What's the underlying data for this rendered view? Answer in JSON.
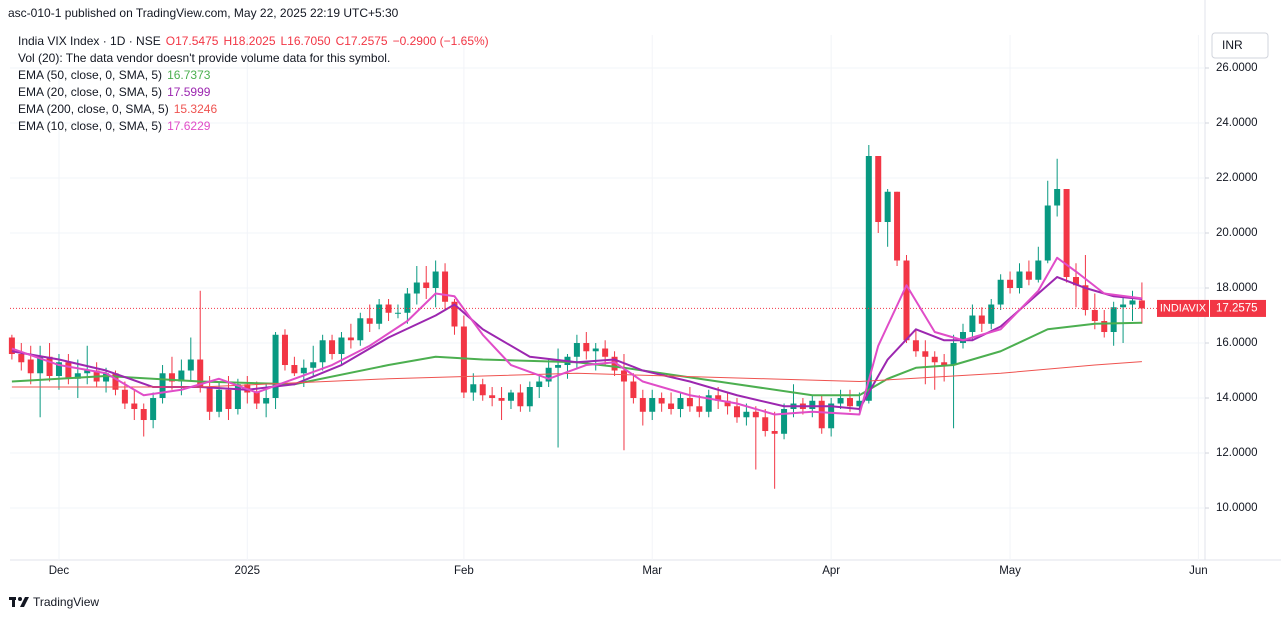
{
  "header": {
    "published": "asc-010-1 published on TradingView.com, May 22, 2025 22:19 UTC+5:30"
  },
  "footer": {
    "brand": "TradingView"
  },
  "chart_data": {
    "type": "candlestick",
    "title": "India VIX Index · 1D · NSE",
    "ohlc_text": [
      "O17.5475",
      "H18.2025",
      "L16.7050",
      "C17.2575",
      "−0.2900 (−1.65%)"
    ],
    "volume_note": "Vol (20): The data vendor doesn't provide volume data for this symbol.",
    "symbol_tag": "INDIAVIX",
    "currency": "INR",
    "up_color": "#089981",
    "down_color": "#f23645",
    "grid": true,
    "xlim": [
      -0.2,
      126.7
    ],
    "xticks": [
      {
        "value": 5,
        "label": "Dec"
      },
      {
        "value": 25,
        "label": "2025"
      },
      {
        "value": 48,
        "label": "Feb"
      },
      {
        "value": 68,
        "label": "Mar"
      },
      {
        "value": 87,
        "label": "Apr"
      },
      {
        "value": 106,
        "label": "May"
      },
      {
        "value": 126,
        "label": "Jun"
      }
    ],
    "ylim": [
      8.11,
      27.2
    ],
    "yticks": [
      {
        "value": 10,
        "label": "10.0000"
      },
      {
        "value": 12,
        "label": "12.0000"
      },
      {
        "value": 14,
        "label": "14.0000"
      },
      {
        "value": 16,
        "label": "16.0000"
      },
      {
        "value": 18,
        "label": "18.0000"
      },
      {
        "value": 20,
        "label": "20.0000"
      },
      {
        "value": 22,
        "label": "22.0000"
      },
      {
        "value": 24,
        "label": "24.0000"
      },
      {
        "value": 26,
        "label": "26.0000"
      }
    ],
    "ohlc": [
      [
        16.2,
        16.3,
        15.4,
        15.6
      ],
      [
        15.6,
        16.0,
        15.0,
        15.3
      ],
      [
        15.4,
        15.9,
        14.5,
        14.9
      ],
      [
        14.9,
        15.9,
        13.3,
        15.5
      ],
      [
        15.5,
        16.0,
        14.6,
        14.8
      ],
      [
        14.8,
        15.6,
        14.3,
        15.3
      ],
      [
        15.3,
        15.6,
        14.5,
        14.7
      ],
      [
        14.7,
        15.4,
        14.0,
        14.9
      ],
      [
        14.9,
        15.9,
        14.5,
        15.0
      ],
      [
        15.0,
        15.3,
        14.4,
        14.6
      ],
      [
        14.6,
        15.1,
        14.2,
        14.9
      ],
      [
        14.9,
        15.0,
        14.1,
        14.3
      ],
      [
        14.3,
        14.6,
        13.6,
        13.8
      ],
      [
        13.8,
        14.3,
        13.2,
        13.6
      ],
      [
        13.6,
        13.8,
        12.6,
        13.2
      ],
      [
        13.2,
        14.2,
        12.9,
        14.0
      ],
      [
        14.0,
        15.2,
        13.8,
        14.9
      ],
      [
        14.9,
        15.5,
        14.3,
        14.6
      ],
      [
        14.6,
        15.4,
        14.1,
        15.0
      ],
      [
        15.0,
        16.2,
        14.6,
        15.4
      ],
      [
        15.4,
        17.9,
        14.2,
        14.4
      ],
      [
        14.4,
        14.8,
        13.2,
        13.5
      ],
      [
        13.5,
        14.6,
        13.3,
        14.3
      ],
      [
        14.3,
        14.8,
        13.2,
        13.6
      ],
      [
        13.6,
        14.7,
        13.4,
        14.5
      ],
      [
        14.5,
        14.8,
        13.8,
        14.2
      ],
      [
        14.2,
        14.6,
        13.6,
        13.8
      ],
      [
        13.8,
        14.5,
        13.3,
        14.0
      ],
      [
        14.0,
        16.4,
        13.6,
        16.3
      ],
      [
        16.3,
        16.5,
        15.0,
        15.2
      ],
      [
        15.2,
        15.5,
        14.8,
        14.9
      ],
      [
        14.9,
        15.4,
        14.4,
        15.1
      ],
      [
        15.1,
        15.9,
        14.8,
        15.3
      ],
      [
        15.3,
        16.3,
        15.0,
        16.1
      ],
      [
        16.1,
        16.3,
        15.4,
        15.6
      ],
      [
        15.6,
        16.4,
        15.2,
        16.2
      ],
      [
        16.2,
        16.7,
        15.8,
        16.1
      ],
      [
        16.1,
        17.1,
        15.9,
        16.9
      ],
      [
        16.9,
        17.4,
        16.4,
        16.7
      ],
      [
        16.7,
        17.6,
        16.5,
        17.4
      ],
      [
        17.4,
        17.6,
        16.8,
        17.1
      ],
      [
        17.1,
        17.4,
        16.9,
        17.1
      ],
      [
        17.1,
        18.0,
        16.7,
        17.8
      ],
      [
        17.8,
        18.8,
        17.4,
        18.2
      ],
      [
        18.2,
        18.8,
        17.6,
        18.0
      ],
      [
        18.0,
        19.0,
        17.3,
        18.6
      ],
      [
        18.6,
        18.9,
        17.2,
        17.5
      ],
      [
        17.5,
        17.6,
        16.3,
        16.6
      ],
      [
        16.6,
        17.0,
        14.0,
        14.2
      ],
      [
        14.2,
        14.9,
        13.9,
        14.5
      ],
      [
        14.5,
        14.7,
        13.9,
        14.1
      ],
      [
        14.1,
        14.4,
        13.7,
        14.0
      ],
      [
        14.0,
        14.4,
        13.2,
        13.9
      ],
      [
        13.9,
        14.3,
        13.6,
        14.2
      ],
      [
        14.2,
        14.5,
        13.5,
        13.7
      ],
      [
        13.7,
        14.6,
        13.5,
        14.4
      ],
      [
        14.4,
        14.8,
        14.0,
        14.6
      ],
      [
        14.6,
        15.4,
        14.4,
        15.1
      ],
      [
        15.1,
        15.8,
        12.2,
        15.2
      ],
      [
        15.2,
        15.6,
        14.7,
        15.5
      ],
      [
        15.5,
        16.3,
        15.1,
        16.0
      ],
      [
        16.0,
        16.4,
        15.4,
        15.7
      ],
      [
        15.7,
        16.0,
        15.0,
        15.8
      ],
      [
        15.8,
        16.1,
        15.2,
        15.5
      ],
      [
        15.5,
        15.7,
        14.8,
        15.0
      ],
      [
        15.0,
        15.6,
        12.1,
        14.6
      ],
      [
        14.6,
        14.9,
        13.8,
        14.0
      ],
      [
        14.0,
        14.3,
        13.0,
        13.5
      ],
      [
        13.5,
        14.3,
        13.2,
        14.0
      ],
      [
        14.0,
        14.2,
        13.5,
        13.8
      ],
      [
        13.8,
        14.2,
        13.4,
        13.6
      ],
      [
        13.6,
        14.2,
        13.3,
        14.0
      ],
      [
        14.0,
        14.4,
        13.5,
        13.7
      ],
      [
        13.7,
        14.1,
        13.3,
        13.5
      ],
      [
        13.5,
        14.3,
        13.3,
        14.1
      ],
      [
        14.1,
        14.4,
        13.6,
        13.9
      ],
      [
        13.9,
        14.2,
        13.4,
        13.7
      ],
      [
        13.7,
        14.0,
        13.1,
        13.3
      ],
      [
        13.3,
        13.8,
        13.0,
        13.5
      ],
      [
        13.5,
        13.7,
        11.4,
        13.3
      ],
      [
        13.3,
        13.6,
        12.6,
        12.8
      ],
      [
        12.8,
        13.5,
        10.7,
        12.7
      ],
      [
        12.7,
        13.8,
        12.5,
        13.6
      ],
      [
        13.6,
        14.5,
        13.3,
        13.8
      ],
      [
        13.8,
        14.0,
        13.4,
        13.6
      ],
      [
        13.6,
        14.1,
        13.3,
        13.9
      ],
      [
        13.9,
        14.1,
        12.7,
        12.9
      ],
      [
        12.9,
        14.0,
        12.6,
        13.8
      ],
      [
        13.8,
        14.3,
        13.6,
        14.0
      ],
      [
        14.0,
        14.3,
        13.5,
        13.7
      ],
      [
        13.7,
        14.2,
        13.5,
        13.9
      ],
      [
        13.9,
        23.2,
        13.8,
        22.8
      ],
      [
        22.8,
        22.8,
        20.0,
        20.4
      ],
      [
        20.4,
        21.6,
        19.5,
        21.5
      ],
      [
        21.5,
        21.5,
        18.8,
        19.0
      ],
      [
        19.0,
        19.2,
        16.0,
        16.1
      ],
      [
        16.1,
        16.5,
        15.5,
        15.7
      ],
      [
        15.7,
        16.1,
        14.5,
        15.5
      ],
      [
        15.5,
        15.7,
        14.3,
        15.3
      ],
      [
        15.3,
        15.6,
        14.6,
        15.2
      ],
      [
        15.2,
        16.3,
        12.9,
        16.0
      ],
      [
        16.0,
        16.7,
        15.8,
        16.4
      ],
      [
        16.4,
        17.4,
        16.1,
        17.0
      ],
      [
        17.0,
        17.3,
        16.4,
        16.7
      ],
      [
        16.7,
        17.6,
        16.5,
        17.4
      ],
      [
        17.4,
        18.5,
        17.2,
        18.3
      ],
      [
        18.3,
        18.6,
        17.8,
        18.0
      ],
      [
        18.0,
        18.9,
        17.8,
        18.6
      ],
      [
        18.6,
        19.0,
        18.1,
        18.3
      ],
      [
        18.3,
        19.5,
        18.2,
        19.0
      ],
      [
        19.0,
        21.9,
        18.9,
        21.0
      ],
      [
        21.0,
        22.7,
        20.6,
        21.6
      ],
      [
        21.6,
        21.6,
        18.2,
        18.4
      ],
      [
        18.4,
        18.9,
        17.3,
        18.1
      ],
      [
        18.1,
        19.2,
        17.0,
        17.2
      ],
      [
        17.2,
        17.8,
        16.5,
        16.8
      ],
      [
        16.8,
        17.2,
        16.2,
        16.4
      ],
      [
        16.4,
        17.5,
        15.9,
        17.3
      ],
      [
        17.3,
        17.7,
        16.0,
        17.4
      ],
      [
        17.4,
        17.9,
        16.8,
        17.5475
      ],
      [
        17.5475,
        18.2025,
        16.705,
        17.2575
      ]
    ],
    "series": [
      {
        "name": "EMA (50, close, 0, SMA, 5)",
        "color": "#4caf50",
        "width": 2,
        "x": [
          0,
          10,
          20,
          30,
          40,
          45,
          50,
          60,
          65,
          75,
          85,
          90,
          93,
          96,
          100,
          105,
          110,
          115,
          120
        ],
        "values": [
          14.6,
          14.8,
          14.6,
          14.5,
          15.2,
          15.5,
          15.4,
          15.3,
          15.1,
          14.6,
          14.1,
          14.1,
          14.7,
          15.1,
          15.2,
          15.7,
          16.5,
          16.7,
          16.7373
        ]
      },
      {
        "name": "EMA (20, close, 0, SMA, 5)",
        "color": "#9c27b0",
        "width": 2,
        "x": [
          0,
          5,
          10,
          15,
          20,
          25,
          30,
          35,
          40,
          45,
          47,
          50,
          55,
          60,
          64,
          67,
          72,
          77,
          82,
          87,
          90,
          93,
          96,
          99,
          102,
          105,
          108,
          111,
          114,
          117,
          120
        ],
        "values": [
          15.7,
          15.4,
          15.0,
          14.4,
          14.4,
          14.3,
          14.5,
          15.2,
          16.2,
          17.0,
          17.4,
          16.5,
          15.5,
          15.3,
          15.4,
          15.0,
          14.6,
          14.1,
          13.7,
          13.7,
          13.6,
          15.4,
          16.5,
          16.1,
          16.1,
          16.6,
          17.5,
          18.4,
          18.0,
          17.7,
          17.5999
        ]
      },
      {
        "name": "EMA (200, close, 0, SMA, 5)",
        "color": "#ef5350",
        "width": 1,
        "x": [
          0,
          20,
          40,
          60,
          80,
          90,
          95,
          105,
          115,
          120
        ],
        "values": [
          14.4,
          14.4,
          14.7,
          14.9,
          14.7,
          14.6,
          14.7,
          14.9,
          15.2,
          15.3246
        ]
      },
      {
        "name": "EMA (10, close, 0, SMA, 5)",
        "color": "#e04dc8",
        "width": 2,
        "x": [
          0,
          5,
          10,
          14,
          18,
          22,
          26,
          30,
          34,
          38,
          42,
          45,
          47,
          50,
          53,
          57,
          61,
          64,
          67,
          72,
          77,
          81,
          85,
          90,
          92,
          95,
          98,
          101,
          105,
          109,
          111,
          113,
          116,
          120
        ],
        "values": [
          15.8,
          15.2,
          14.9,
          14.1,
          14.3,
          14.7,
          14.2,
          14.7,
          15.2,
          15.9,
          16.8,
          17.8,
          17.7,
          16.3,
          15.2,
          14.7,
          15.2,
          15.3,
          14.6,
          14.1,
          13.8,
          13.4,
          13.5,
          13.4,
          15.9,
          18.1,
          16.4,
          16.1,
          16.5,
          17.9,
          19.1,
          18.6,
          17.8,
          17.6229
        ]
      }
    ]
  }
}
